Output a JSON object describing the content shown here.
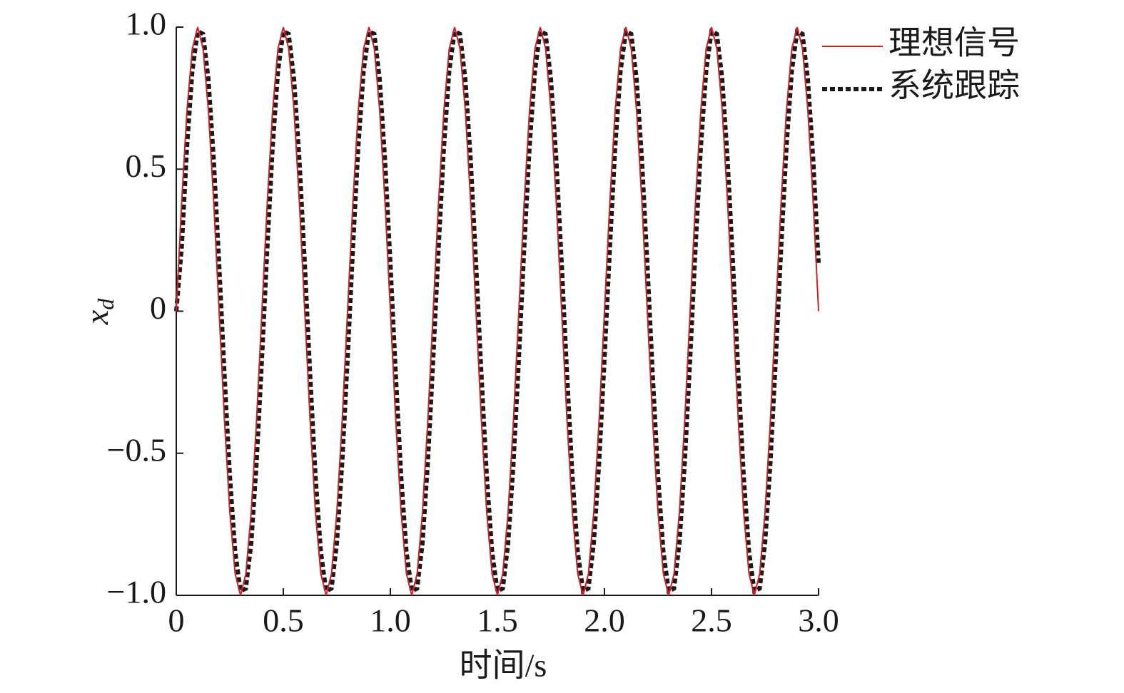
{
  "chart_data": {
    "type": "line",
    "xlabel": "时间/s",
    "ylabel": "x",
    "ylabel_subscript": "d",
    "x": [
      0,
      0.025,
      0.05,
      0.075,
      0.1,
      0.125,
      0.15,
      0.175,
      0.2,
      0.225,
      0.25,
      0.275,
      0.3,
      0.325,
      0.35,
      0.375,
      0.4,
      0.425,
      0.45,
      0.475,
      0.5,
      0.525,
      0.55,
      0.575,
      0.6,
      0.625,
      0.65,
      0.675,
      0.7,
      0.725,
      0.75,
      0.775,
      0.8,
      0.825,
      0.85,
      0.875,
      0.9,
      0.925,
      0.95,
      0.975,
      1,
      1.025,
      1.05,
      1.075,
      1.1,
      1.125,
      1.15,
      1.175,
      1.2,
      1.225,
      1.25,
      1.275,
      1.3,
      1.325,
      1.35,
      1.375,
      1.4,
      1.425,
      1.45,
      1.475,
      1.5,
      1.525,
      1.55,
      1.575,
      1.6,
      1.625,
      1.65,
      1.675,
      1.7,
      1.725,
      1.75,
      1.775,
      1.8,
      1.825,
      1.85,
      1.875,
      1.9,
      1.925,
      1.95,
      1.975,
      2,
      2.025,
      2.05,
      2.075,
      2.1,
      2.125,
      2.15,
      2.175,
      2.2,
      2.225,
      2.25,
      2.275,
      2.3,
      2.325,
      2.35,
      2.375,
      2.4,
      2.425,
      2.45,
      2.475,
      2.5,
      2.525,
      2.55,
      2.575,
      2.6,
      2.625,
      2.65,
      2.675,
      2.7,
      2.725,
      2.75,
      2.775,
      2.8,
      2.825,
      2.85,
      2.875,
      2.9,
      2.925,
      2.95,
      2.975,
      3
    ],
    "series": [
      {
        "name": "理想信号",
        "color": "#d0202a",
        "style": "solid",
        "values": [
          0,
          0.383,
          0.707,
          0.924,
          1,
          0.924,
          0.707,
          0.383,
          0,
          -0.383,
          -0.707,
          -0.924,
          -1,
          -0.924,
          -0.707,
          -0.383,
          0,
          0.383,
          0.707,
          0.924,
          1,
          0.924,
          0.707,
          0.383,
          0,
          -0.383,
          -0.707,
          -0.924,
          -1,
          -0.924,
          -0.707,
          -0.383,
          0,
          0.383,
          0.707,
          0.924,
          1,
          0.924,
          0.707,
          0.383,
          0,
          -0.383,
          -0.707,
          -0.924,
          -1,
          -0.924,
          -0.707,
          -0.383,
          0,
          0.383,
          0.707,
          0.924,
          1,
          0.924,
          0.707,
          0.383,
          0,
          -0.383,
          -0.707,
          -0.924,
          -1,
          -0.924,
          -0.707,
          -0.383,
          0,
          0.383,
          0.707,
          0.924,
          1,
          0.924,
          0.707,
          0.383,
          0,
          -0.383,
          -0.707,
          -0.924,
          -1,
          -0.924,
          -0.707,
          -0.383,
          0,
          0.383,
          0.707,
          0.924,
          1,
          0.924,
          0.707,
          0.383,
          0,
          -0.383,
          -0.707,
          -0.924,
          -1,
          -0.924,
          -0.707,
          -0.383,
          0,
          0.383,
          0.707,
          0.924,
          1,
          0.924,
          0.707,
          0.383,
          0,
          -0.383,
          -0.707,
          -0.924,
          -1,
          -0.924,
          -0.707,
          -0.383,
          0,
          0.383,
          0.707,
          0.924,
          1,
          0.924,
          0.707,
          0.383,
          0
        ]
      },
      {
        "name": "系统跟踪",
        "color": "#1a1a1a",
        "style": "dotted",
        "values": [
          0,
          0.22,
          0.577,
          0.845,
          0.985,
          0.976,
          0.817,
          0.533,
          0.17,
          -0.22,
          -0.577,
          -0.845,
          -0.985,
          -0.976,
          -0.817,
          -0.533,
          -0.17,
          0.22,
          0.577,
          0.845,
          0.985,
          0.976,
          0.817,
          0.533,
          0.17,
          -0.22,
          -0.577,
          -0.845,
          -0.985,
          -0.976,
          -0.817,
          -0.533,
          -0.17,
          0.22,
          0.577,
          0.845,
          0.985,
          0.976,
          0.817,
          0.533,
          0.17,
          -0.22,
          -0.577,
          -0.845,
          -0.985,
          -0.976,
          -0.817,
          -0.533,
          -0.17,
          0.22,
          0.577,
          0.845,
          0.985,
          0.976,
          0.817,
          0.533,
          0.17,
          -0.22,
          -0.577,
          -0.845,
          -0.985,
          -0.976,
          -0.817,
          -0.533,
          -0.17,
          0.22,
          0.577,
          0.845,
          0.985,
          0.976,
          0.817,
          0.533,
          0.17,
          -0.22,
          -0.577,
          -0.845,
          -0.985,
          -0.976,
          -0.817,
          -0.533,
          -0.17,
          0.22,
          0.577,
          0.845,
          0.985,
          0.976,
          0.817,
          0.533,
          0.17,
          -0.22,
          -0.577,
          -0.845,
          -0.985,
          -0.976,
          -0.817,
          -0.533,
          -0.17,
          0.22,
          0.577,
          0.845,
          0.985,
          0.976,
          0.817,
          0.533,
          0.17,
          -0.22,
          -0.577,
          -0.845,
          -0.985,
          -0.976,
          -0.817,
          -0.533,
          -0.17,
          0.22,
          0.577,
          0.845,
          0.985,
          0.976,
          0.817,
          0.533,
          0.17
        ]
      }
    ],
    "xlim": [
      0,
      3
    ],
    "xticks": [
      0,
      0.5,
      {
        "value": 1,
        "label": "1.0"
      },
      1.5,
      {
        "value": 2,
        "label": "2.0"
      },
      2.5,
      {
        "value": 3,
        "label": "3.0"
      }
    ],
    "ylim": [
      -1,
      1
    ],
    "yticks": [
      {
        "value": -1,
        "label": "−1.0"
      },
      {
        "value": -0.5,
        "label": "−0.5"
      },
      0,
      0.5,
      {
        "value": 1,
        "label": "1.0"
      }
    ],
    "grid": false,
    "legend": "outside-top-right"
  }
}
